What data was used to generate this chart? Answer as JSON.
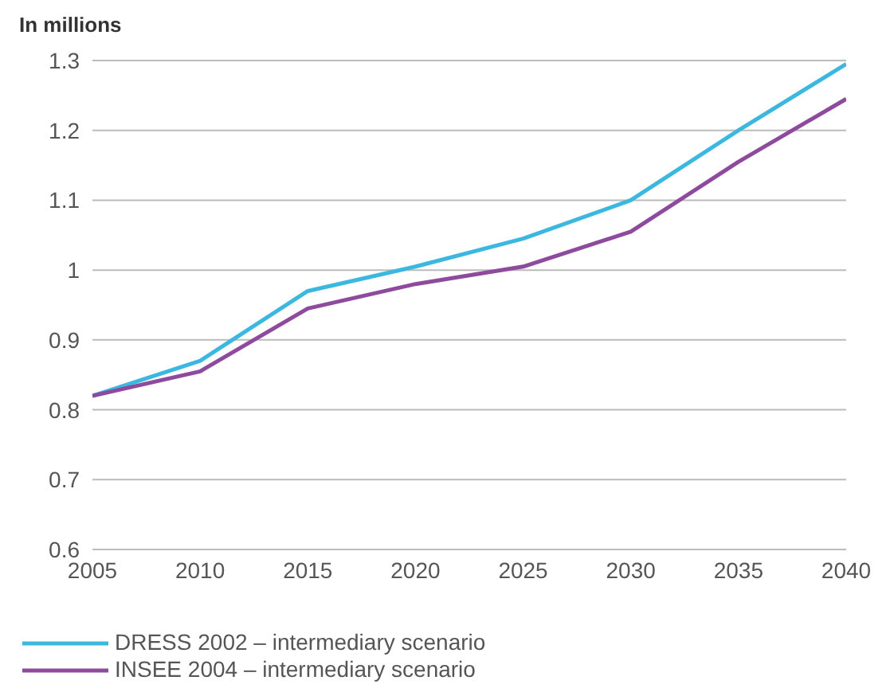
{
  "chart_data": {
    "type": "line",
    "ylabel": "In millions",
    "x": [
      2005,
      2010,
      2015,
      2020,
      2025,
      2030,
      2035,
      2040
    ],
    "series": [
      {
        "name": "DRESS 2002 – intermediary scenario",
        "color": "#3cb8e0",
        "values": [
          0.82,
          0.87,
          0.97,
          1.005,
          1.045,
          1.1,
          1.2,
          1.295
        ]
      },
      {
        "name": "INSEE 2004 – intermediary scenario",
        "color": "#8e4b9e",
        "values": [
          0.82,
          0.855,
          0.945,
          0.98,
          1.005,
          1.055,
          1.155,
          1.245
        ]
      }
    ],
    "xlim": [
      2005,
      2040
    ],
    "xticks": [
      2005,
      2010,
      2015,
      2020,
      2025,
      2030,
      2035,
      2040
    ],
    "ylim": [
      0.6,
      1.3
    ],
    "yticks": [
      0.6,
      0.7,
      0.8,
      0.9,
      1,
      1.1,
      1.2,
      1.3
    ],
    "grid": "y",
    "legend": "bottom left",
    "marker": "none",
    "line_style": "solid"
  }
}
